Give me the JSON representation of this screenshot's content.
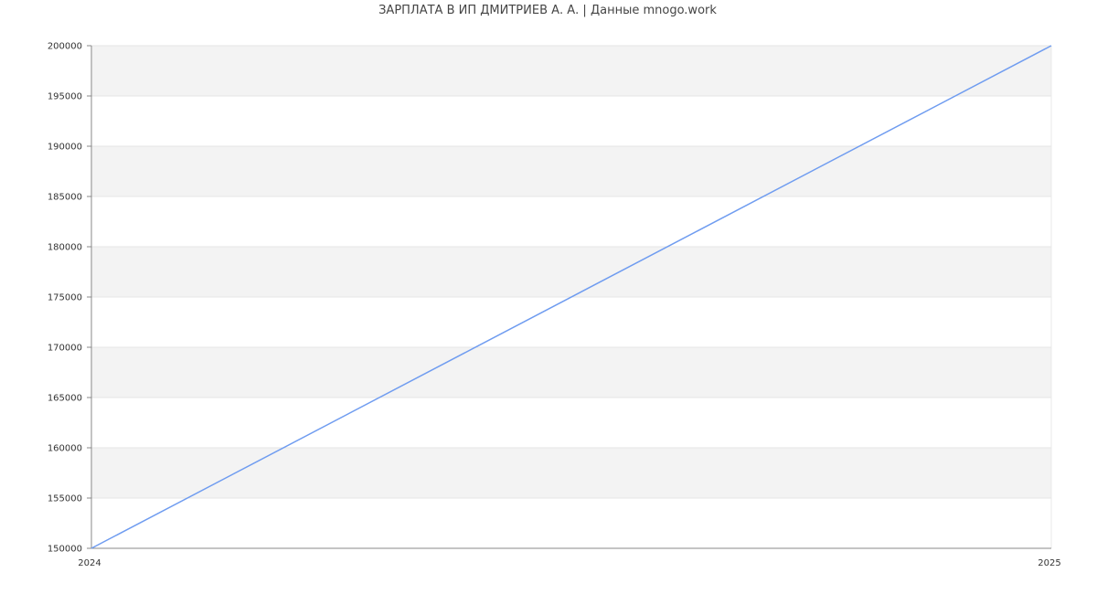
{
  "chart_data": {
    "type": "line",
    "title": "ЗАРПЛАТА В ИП ДМИТРИЕВ А. А. | Данные mnogo.work",
    "x": [
      "2024",
      "2025"
    ],
    "series": [
      {
        "values": [
          150000,
          200000
        ],
        "color": "#6f9cf0"
      }
    ],
    "ylim": [
      150000,
      200000
    ],
    "yticks": [
      150000,
      155000,
      160000,
      165000,
      170000,
      175000,
      180000,
      185000,
      190000,
      195000,
      200000
    ],
    "xticks": [
      "2024",
      "2025"
    ],
    "grid": true,
    "band_color": "#f3f3f3",
    "legend": "none"
  }
}
